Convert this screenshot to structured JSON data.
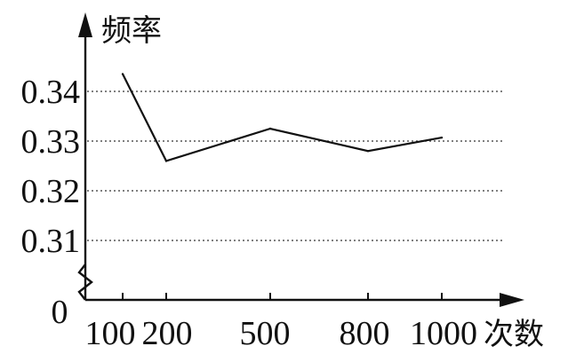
{
  "chart_data": {
    "type": "line",
    "ylabel": "频率",
    "xlabel": "次数",
    "origin_label": "0",
    "grid": "horizontal-dotted",
    "x": [
      100,
      200,
      500,
      800,
      1000
    ],
    "x_tick_labels": [
      "100",
      "200",
      "500",
      "800",
      "1000"
    ],
    "y_ticks": [
      0.31,
      0.32,
      0.33,
      0.34
    ],
    "y_tick_labels": [
      "0.31",
      "0.32",
      "0.33",
      "0.34"
    ],
    "series": [
      {
        "values": [
          0.3435,
          0.326,
          0.3325,
          0.328,
          0.3307
        ]
      }
    ],
    "y_axis_break": true
  }
}
